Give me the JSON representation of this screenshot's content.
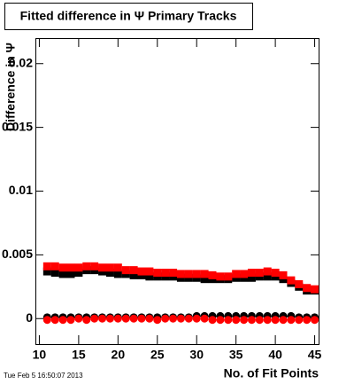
{
  "chart_data": {
    "type": "scatter",
    "title": "Fitted difference in Ψ  Primary Tracks",
    "x_label": "No. of Fit Points",
    "y_label": "Difference in Ψ",
    "footer": "Tue Feb  5 16:50:07 2013",
    "xlim": [
      9.5,
      45.5
    ],
    "xticks": [
      10,
      15,
      20,
      25,
      30,
      35,
      40,
      45
    ],
    "ylim": [
      -0.002,
      0.022
    ],
    "yticks": [
      0,
      0.005,
      0.01,
      0.015,
      0.02
    ],
    "x": [
      11,
      12,
      13,
      14,
      15,
      16,
      17,
      18,
      19,
      20,
      21,
      22,
      23,
      24,
      25,
      26,
      27,
      28,
      29,
      30,
      31,
      32,
      33,
      34,
      35,
      36,
      37,
      38,
      39,
      40,
      41,
      42,
      43,
      44,
      45
    ],
    "series": [
      {
        "color": "#000000",
        "marker": "square",
        "values": [
          0.0037,
          0.0036,
          0.0035,
          0.0035,
          0.0036,
          0.0038,
          0.0038,
          0.0037,
          0.0036,
          0.0035,
          0.0035,
          0.0034,
          0.0034,
          0.0033,
          0.0033,
          0.0033,
          0.0033,
          0.0032,
          0.0032,
          0.0032,
          0.0031,
          0.0031,
          0.0031,
          0.0031,
          0.0032,
          0.0032,
          0.0032,
          0.0033,
          0.0033,
          0.0033,
          0.0031,
          0.0028,
          0.0025,
          0.0022,
          0.0022
        ]
      },
      {
        "color": "#ff0000",
        "marker": "square",
        "values": [
          0.0041,
          0.0041,
          0.004,
          0.004,
          0.004,
          0.0041,
          0.0041,
          0.004,
          0.004,
          0.004,
          0.0038,
          0.0038,
          0.0037,
          0.0037,
          0.0036,
          0.0036,
          0.0036,
          0.0035,
          0.0035,
          0.0035,
          0.0035,
          0.0034,
          0.0033,
          0.0033,
          0.0035,
          0.0035,
          0.0036,
          0.0036,
          0.0037,
          0.0036,
          0.0034,
          0.003,
          0.0027,
          0.0024,
          0.0023
        ]
      },
      {
        "color": "#000000",
        "marker": "circle",
        "values": [
          0.0001,
          0.0001,
          0.0001,
          0.0001,
          0.0001,
          0.0001,
          0.0001,
          0.0001,
          0.0001,
          0.0001,
          0.0001,
          0.0001,
          0.0001,
          0.0001,
          0.0001,
          0.0001,
          0.0001,
          0.0001,
          0.0001,
          0.0002,
          0.0002,
          0.0002,
          0.0002,
          0.0002,
          0.0002,
          0.0002,
          0.0002,
          0.0002,
          0.0002,
          0.0002,
          0.0002,
          0.0002,
          0.0001,
          0.0001,
          0.0001
        ]
      },
      {
        "color": "#ff0000",
        "marker": "circle",
        "values": [
          -0.0001,
          -0.0001,
          -0.0001,
          -0.0001,
          0,
          -0.0001,
          0,
          0,
          0,
          0,
          0,
          0,
          0,
          0,
          -0.0001,
          0,
          0,
          0,
          0,
          0,
          0,
          -0.0001,
          -0.0001,
          -0.0001,
          -0.0001,
          -0.0001,
          -0.0001,
          -0.0001,
          -0.0001,
          -0.0001,
          -0.0001,
          -0.0001,
          -0.0001,
          -0.0001,
          -0.0001
        ]
      }
    ]
  }
}
